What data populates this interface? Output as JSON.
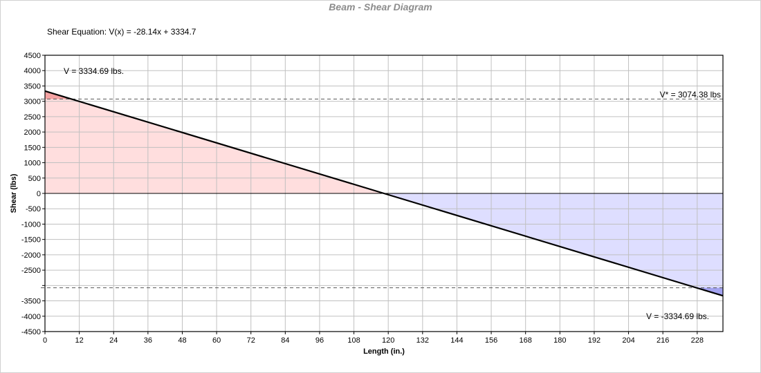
{
  "chart_data": {
    "type": "area",
    "title": "Beam - Shear Diagram",
    "subtitle": "Shear Equation:  V(x) = -28.14x + 3334.7",
    "xlabel": "Length (in.)",
    "ylabel": "Shear (lbs)",
    "xlim": [
      0,
      237
    ],
    "ylim": [
      -4500,
      4500
    ],
    "xticks": [
      0,
      12,
      24,
      36,
      48,
      60,
      72,
      84,
      96,
      108,
      120,
      132,
      144,
      156,
      168,
      180,
      192,
      204,
      216,
      228
    ],
    "yticks": [
      4500,
      4000,
      3500,
      3000,
      2500,
      2000,
      1500,
      1000,
      500,
      0,
      -500,
      -1000,
      -1500,
      -2000,
      -2500,
      -3000,
      -3500,
      -4000,
      -4500
    ],
    "ytick_labels": [
      "4500",
      "4000",
      "3500",
      "3000",
      "2500",
      "2000",
      "1500",
      "1000",
      "500",
      "0",
      "-500",
      "-1000",
      "-1500",
      "-2000",
      "-2500",
      "",
      "-3500",
      "-4000",
      "-4500"
    ],
    "grid": true,
    "series": [
      {
        "x": [
          0,
          118.5,
          237
        ],
        "y": [
          3334.69,
          0,
          -3334.69
        ],
        "color": "#000000"
      }
    ],
    "positive_fill": "#ffdede",
    "positive_exceed_fill": "#f5a3a3",
    "negative_fill": "#dedeff",
    "negative_exceed_fill": "#a3a3f0",
    "reference_lines": [
      3074.38,
      -3074.38
    ],
    "annotations": {
      "vmax": "V = 3334.69 lbs.",
      "vstar": "V* = 3074.38 lbs",
      "vmin": "V = -3334.69 lbs."
    }
  }
}
